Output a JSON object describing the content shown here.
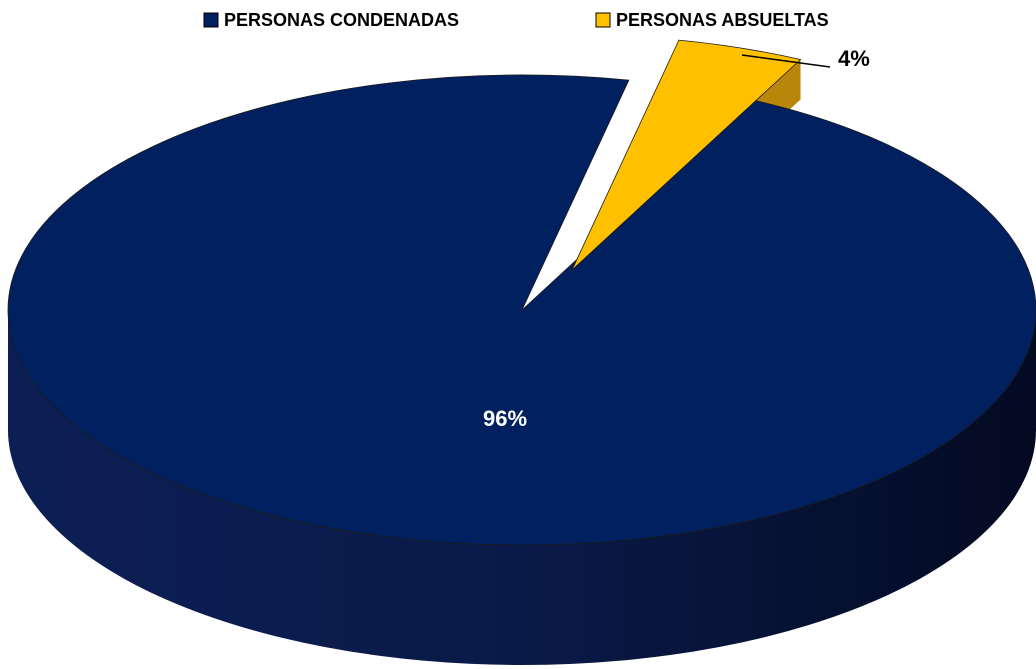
{
  "chart_data": {
    "type": "pie",
    "categories": [
      "PERSONAS CONDENADAS",
      "PERSONAS ABSUELTAS"
    ],
    "values": [
      96,
      4
    ],
    "value_labels": [
      "96%",
      "4%"
    ],
    "colors": [
      "#002060",
      "#ffc000"
    ],
    "legend": "top"
  }
}
